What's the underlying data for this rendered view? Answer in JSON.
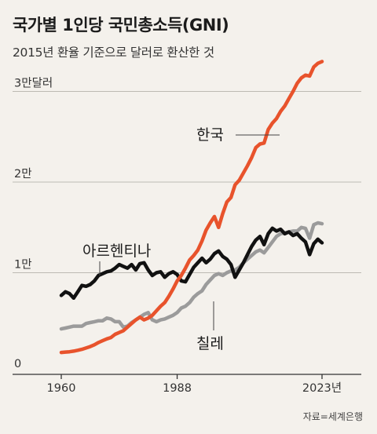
{
  "title": "국가별 1인당 국민총소득(GNI)",
  "subtitle": "2015년 환율 기준으로 달러로 환산한 것",
  "source": "자료=세계은행",
  "colors": {
    "korea": "#e8532c",
    "argentina": "#111111",
    "chile": "#9b9b9b",
    "background": "#f4f1ec"
  },
  "chart_data": {
    "type": "line",
    "x_ticks": [
      "1960",
      "1988",
      "2023년"
    ],
    "y_ticks": [
      {
        "value": 0,
        "label": "0"
      },
      {
        "value": 10000,
        "label": "1만"
      },
      {
        "value": 20000,
        "label": "2만"
      },
      {
        "value": 30000,
        "label": "3만달러"
      }
    ],
    "xlim": [
      1960,
      2023
    ],
    "ylim": [
      0,
      33000
    ],
    "series": [
      {
        "name": "한국",
        "key": "korea",
        "values": [
          [
            1960,
            1200
          ],
          [
            1961,
            1250
          ],
          [
            1962,
            1280
          ],
          [
            1963,
            1350
          ],
          [
            1964,
            1450
          ],
          [
            1965,
            1550
          ],
          [
            1966,
            1700
          ],
          [
            1967,
            1850
          ],
          [
            1968,
            2050
          ],
          [
            1969,
            2300
          ],
          [
            1970,
            2500
          ],
          [
            1971,
            2700
          ],
          [
            1972,
            2850
          ],
          [
            1973,
            3200
          ],
          [
            1974,
            3400
          ],
          [
            1975,
            3600
          ],
          [
            1976,
            4000
          ],
          [
            1977,
            4400
          ],
          [
            1978,
            4800
          ],
          [
            1979,
            5100
          ],
          [
            1980,
            4800
          ],
          [
            1981,
            5000
          ],
          [
            1982,
            5300
          ],
          [
            1983,
            5800
          ],
          [
            1984,
            6300
          ],
          [
            1985,
            6700
          ],
          [
            1986,
            7400
          ],
          [
            1987,
            8200
          ],
          [
            1988,
            9100
          ],
          [
            1989,
            9700
          ],
          [
            1990,
            10500
          ],
          [
            1991,
            11400
          ],
          [
            1992,
            11900
          ],
          [
            1993,
            12500
          ],
          [
            1994,
            13500
          ],
          [
            1995,
            14700
          ],
          [
            1996,
            15500
          ],
          [
            1997,
            16200
          ],
          [
            1998,
            15000
          ],
          [
            1999,
            16500
          ],
          [
            2000,
            17800
          ],
          [
            2001,
            18300
          ],
          [
            2002,
            19700
          ],
          [
            2003,
            20200
          ],
          [
            2004,
            21000
          ],
          [
            2005,
            21800
          ],
          [
            2006,
            22700
          ],
          [
            2007,
            23800
          ],
          [
            2008,
            24200
          ],
          [
            2009,
            24300
          ],
          [
            2010,
            25800
          ],
          [
            2011,
            26500
          ],
          [
            2012,
            27000
          ],
          [
            2013,
            27800
          ],
          [
            2014,
            28400
          ],
          [
            2015,
            29200
          ],
          [
            2016,
            30000
          ],
          [
            2017,
            30900
          ],
          [
            2018,
            31500
          ],
          [
            2019,
            31800
          ],
          [
            2020,
            31700
          ],
          [
            2021,
            32700
          ],
          [
            2022,
            33100
          ],
          [
            2023,
            33300
          ]
        ]
      },
      {
        "name": "아르헨티나",
        "key": "argentina",
        "values": [
          [
            1960,
            7500
          ],
          [
            1961,
            7900
          ],
          [
            1962,
            7700
          ],
          [
            1963,
            7200
          ],
          [
            1964,
            7900
          ],
          [
            1965,
            8600
          ],
          [
            1966,
            8500
          ],
          [
            1967,
            8700
          ],
          [
            1968,
            9100
          ],
          [
            1969,
            9700
          ],
          [
            1970,
            9900
          ],
          [
            1971,
            10100
          ],
          [
            1972,
            10200
          ],
          [
            1973,
            10500
          ],
          [
            1974,
            10900
          ],
          [
            1975,
            10700
          ],
          [
            1976,
            10500
          ],
          [
            1977,
            10900
          ],
          [
            1978,
            10300
          ],
          [
            1979,
            11000
          ],
          [
            1980,
            11100
          ],
          [
            1981,
            10300
          ],
          [
            1982,
            9700
          ],
          [
            1983,
            10000
          ],
          [
            1984,
            10100
          ],
          [
            1985,
            9500
          ],
          [
            1986,
            9900
          ],
          [
            1987,
            10100
          ],
          [
            1988,
            9800
          ],
          [
            1989,
            9100
          ],
          [
            1990,
            9000
          ],
          [
            1991,
            9800
          ],
          [
            1992,
            10600
          ],
          [
            1993,
            11100
          ],
          [
            1994,
            11600
          ],
          [
            1995,
            11100
          ],
          [
            1996,
            11500
          ],
          [
            1997,
            12100
          ],
          [
            1998,
            12400
          ],
          [
            1999,
            11800
          ],
          [
            2000,
            11500
          ],
          [
            2001,
            10900
          ],
          [
            2002,
            9500
          ],
          [
            2003,
            10300
          ],
          [
            2004,
            11100
          ],
          [
            2005,
            12000
          ],
          [
            2006,
            12900
          ],
          [
            2007,
            13600
          ],
          [
            2008,
            14000
          ],
          [
            2009,
            13100
          ],
          [
            2010,
            14300
          ],
          [
            2011,
            14900
          ],
          [
            2012,
            14600
          ],
          [
            2013,
            14800
          ],
          [
            2014,
            14300
          ],
          [
            2015,
            14500
          ],
          [
            2016,
            14100
          ],
          [
            2017,
            14300
          ],
          [
            2018,
            13800
          ],
          [
            2019,
            13400
          ],
          [
            2020,
            12000
          ],
          [
            2021,
            13200
          ],
          [
            2022,
            13700
          ],
          [
            2023,
            13300
          ]
        ]
      },
      {
        "name": "칠레",
        "key": "chile",
        "values": [
          [
            1960,
            3800
          ],
          [
            1961,
            3900
          ],
          [
            1962,
            4000
          ],
          [
            1963,
            4100
          ],
          [
            1964,
            4100
          ],
          [
            1965,
            4100
          ],
          [
            1966,
            4400
          ],
          [
            1967,
            4500
          ],
          [
            1968,
            4600
          ],
          [
            1969,
            4700
          ],
          [
            1970,
            4700
          ],
          [
            1971,
            5000
          ],
          [
            1972,
            4900
          ],
          [
            1973,
            4600
          ],
          [
            1974,
            4600
          ],
          [
            1975,
            4000
          ],
          [
            1976,
            4100
          ],
          [
            1977,
            4500
          ],
          [
            1978,
            4800
          ],
          [
            1979,
            5100
          ],
          [
            1980,
            5400
          ],
          [
            1981,
            5600
          ],
          [
            1982,
            4800
          ],
          [
            1983,
            4600
          ],
          [
            1984,
            4800
          ],
          [
            1985,
            4900
          ],
          [
            1986,
            5100
          ],
          [
            1987,
            5300
          ],
          [
            1988,
            5600
          ],
          [
            1989,
            6100
          ],
          [
            1990,
            6300
          ],
          [
            1991,
            6700
          ],
          [
            1992,
            7300
          ],
          [
            1993,
            7700
          ],
          [
            1994,
            8000
          ],
          [
            1995,
            8700
          ],
          [
            1996,
            9200
          ],
          [
            1997,
            9700
          ],
          [
            1998,
            9900
          ],
          [
            1999,
            9700
          ],
          [
            2000,
            10000
          ],
          [
            2001,
            10200
          ],
          [
            2002,
            10300
          ],
          [
            2003,
            10600
          ],
          [
            2004,
            11100
          ],
          [
            2005,
            11500
          ],
          [
            2006,
            11900
          ],
          [
            2007,
            12300
          ],
          [
            2008,
            12500
          ],
          [
            2009,
            12200
          ],
          [
            2010,
            12800
          ],
          [
            2011,
            13400
          ],
          [
            2012,
            14000
          ],
          [
            2013,
            14300
          ],
          [
            2014,
            14400
          ],
          [
            2015,
            14500
          ],
          [
            2016,
            14600
          ],
          [
            2017,
            14600
          ],
          [
            2018,
            15000
          ],
          [
            2019,
            14900
          ],
          [
            2020,
            13800
          ],
          [
            2021,
            15300
          ],
          [
            2022,
            15500
          ],
          [
            2023,
            15400
          ]
        ]
      }
    ],
    "annotations": [
      {
        "text": "한국",
        "series": "korea"
      },
      {
        "text": "아르헨티나",
        "series": "argentina"
      },
      {
        "text": "칠레",
        "series": "chile"
      }
    ]
  }
}
